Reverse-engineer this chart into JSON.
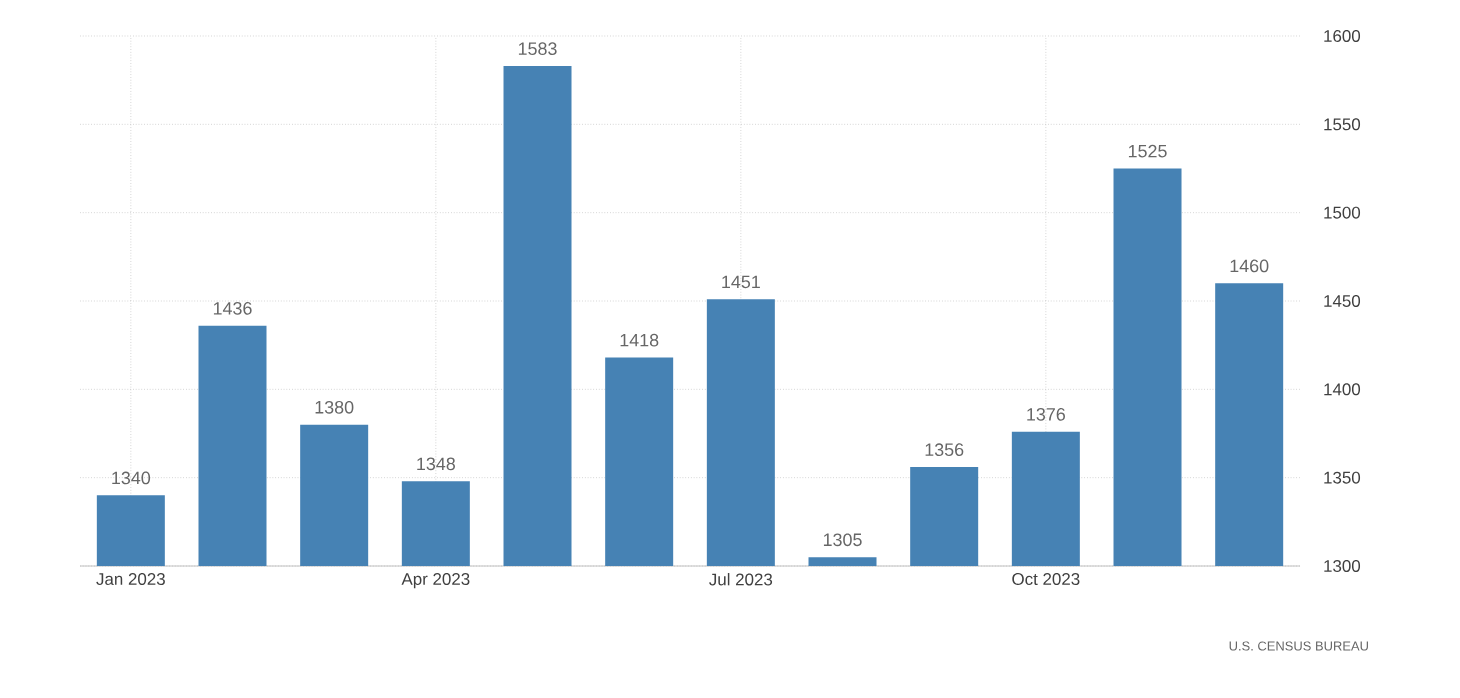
{
  "chart_data": {
    "type": "bar",
    "categories": [
      "Jan 2023",
      null,
      null,
      "Apr 2023",
      null,
      null,
      "Jul 2023",
      null,
      null,
      "Oct 2023",
      null,
      null
    ],
    "values": [
      1340,
      1436,
      1380,
      1348,
      1583,
      1418,
      1451,
      1305,
      1356,
      1376,
      1525,
      1460
    ],
    "color": "#4682b4",
    "ylim": [
      1300,
      1600
    ],
    "yticks": [
      1300,
      1350,
      1400,
      1450,
      1500,
      1550,
      1600
    ],
    "grid": true,
    "data_labels": true,
    "annotations": [
      "U.S. CENSUS BUREAU"
    ]
  }
}
